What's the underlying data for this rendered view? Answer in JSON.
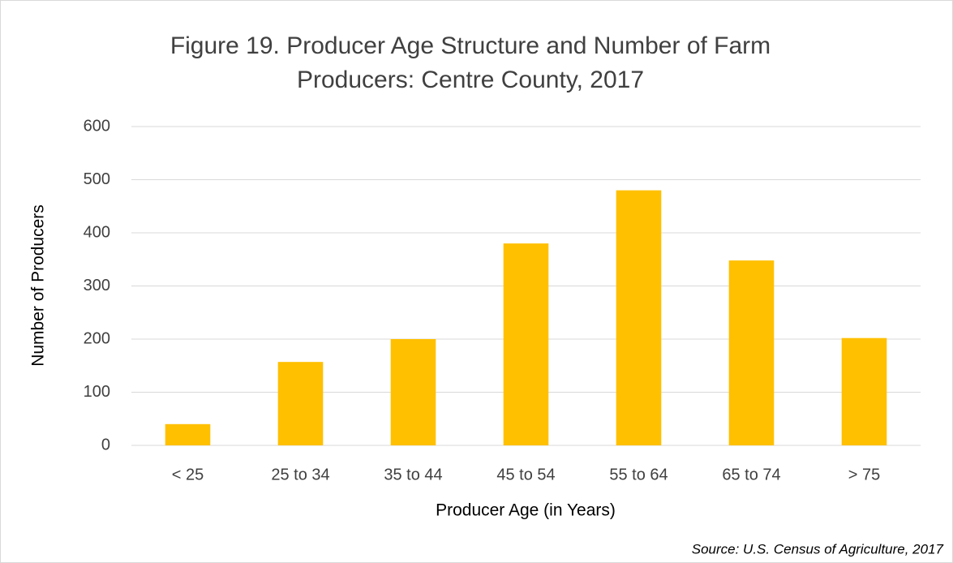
{
  "chart_data": {
    "type": "bar",
    "title": [
      "Figure 19. Producer Age Structure and Number of Farm",
      "Producers: Centre County, 2017"
    ],
    "x_label": "Producer Age (in Years)",
    "y_label": "Number of Producers",
    "source": "Source: U.S. Census of Agriculture, 2017",
    "categories": [
      "< 25",
      "25 to 34",
      "35 to 44",
      "45 to 54",
      "55 to 64",
      "65 to 74",
      "> 75"
    ],
    "values": [
      40,
      157,
      200,
      380,
      480,
      348,
      202
    ],
    "color": "#ffc000",
    "ylim": [
      0,
      600
    ],
    "yticks": [
      0,
      100,
      200,
      300,
      400,
      500,
      600
    ],
    "grid": true
  }
}
